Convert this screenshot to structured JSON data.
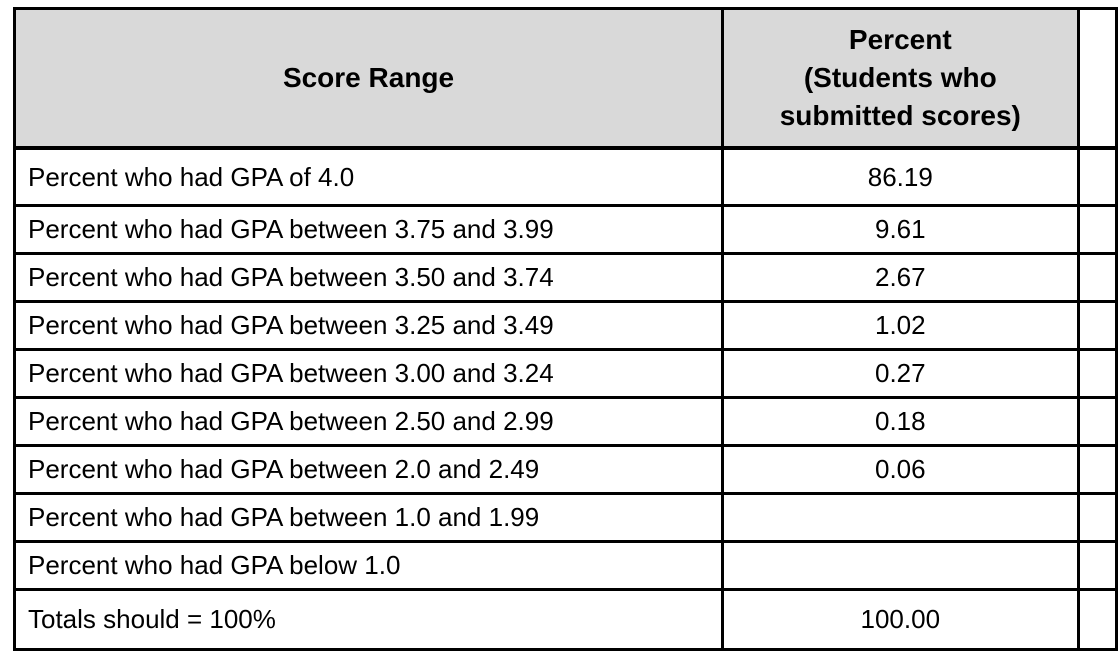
{
  "colors": {
    "page_bg": "#ffffff",
    "header_bg": "#d9d9d9",
    "border": "#000000",
    "text": "#000000"
  },
  "table": {
    "headers": {
      "score_range": "Score Range",
      "percent": "Percent\n(Students who\nsubmitted scores)"
    },
    "rows": [
      {
        "label": "Percent who had GPA of 4.0",
        "value": "86.19"
      },
      {
        "label": "Percent who had GPA between 3.75 and 3.99",
        "value": "9.61"
      },
      {
        "label": "Percent who had GPA between 3.50 and 3.74",
        "value": "2.67"
      },
      {
        "label": "Percent who had GPA between 3.25 and 3.49",
        "value": "1.02"
      },
      {
        "label": "Percent who had GPA between 3.00 and 3.24",
        "value": "0.27"
      },
      {
        "label": "Percent who had GPA between 2.50 and 2.99",
        "value": "0.18"
      },
      {
        "label": "Percent who had GPA between 2.0 and 2.49",
        "value": "0.06"
      },
      {
        "label": "Percent who had GPA between 1.0 and 1.99",
        "value": ""
      },
      {
        "label": "Percent who had GPA below 1.0",
        "value": ""
      },
      {
        "label": "Totals should = 100%",
        "value": "100.00"
      }
    ]
  }
}
